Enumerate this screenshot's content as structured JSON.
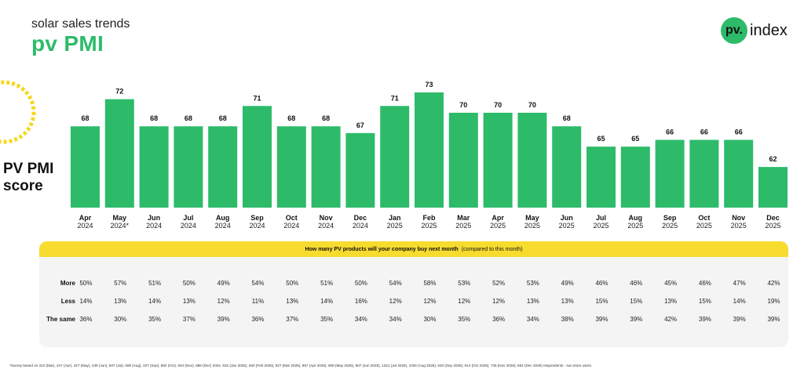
{
  "header": {
    "subtitle": "solar sales trends",
    "title": "pv PMI"
  },
  "logo": {
    "badge": "pv.",
    "text": "index"
  },
  "score_label": {
    "line1": "PV PMI",
    "line2": "score"
  },
  "colors": {
    "bar": "#2dbb6a",
    "accent_yellow": "#f7dc2f",
    "deco_yellow": "#f5d820"
  },
  "chart_data": {
    "type": "bar",
    "title": "pv PMI",
    "ylabel": "PV PMI score",
    "categories": [
      "Apr 2024",
      "May 2024*",
      "Jun 2024",
      "Jul 2024",
      "Aug 2024",
      "Sep 2024",
      "Oct 2024",
      "Nov 2024",
      "Dec 2024",
      "Jan 2025",
      "Feb 2025",
      "Mar 2025",
      "Apr 2025",
      "May 2025",
      "Jun 2025",
      "Jul 2025",
      "Aug 2025",
      "Sep 2025",
      "Oct 2025",
      "Nov 2025",
      "Dec 2025"
    ],
    "months": [
      "Apr",
      "May",
      "Jun",
      "Jul",
      "Aug",
      "Sep",
      "Oct",
      "Nov",
      "Dec",
      "Jan",
      "Feb",
      "Mar",
      "Apr",
      "May",
      "Jun",
      "Jul",
      "Aug",
      "Sep",
      "Oct",
      "Nov",
      "Dec"
    ],
    "years": [
      "2024",
      "2024*",
      "2024",
      "2024",
      "2024",
      "2024",
      "2024",
      "2024",
      "2024",
      "2025",
      "2025",
      "2025",
      "2025",
      "2025",
      "2025",
      "2025",
      "2025",
      "2025",
      "2025",
      "2025",
      "2025"
    ],
    "values": [
      68,
      72,
      68,
      68,
      68,
      71,
      68,
      68,
      67,
      71,
      73,
      70,
      70,
      70,
      68,
      65,
      65,
      66,
      66,
      66,
      62
    ],
    "ylim": [
      56,
      73
    ]
  },
  "survey_table": {
    "question": "How many PV products will your company buy next month",
    "note": "(compared to this month)",
    "rows": [
      {
        "label": "More",
        "values": [
          "50%",
          "57%",
          "51%",
          "50%",
          "49%",
          "54%",
          "50%",
          "51%",
          "50%",
          "54%",
          "58%",
          "53%",
          "52%",
          "53%",
          "49%",
          "46%",
          "46%",
          "45%",
          "46%",
          "47%",
          "42%"
        ]
      },
      {
        "label": "Less",
        "values": [
          "14%",
          "13%",
          "14%",
          "13%",
          "12%",
          "11%",
          "13%",
          "14%",
          "16%",
          "12%",
          "12%",
          "12%",
          "12%",
          "13%",
          "13%",
          "15%",
          "15%",
          "13%",
          "15%",
          "14%",
          "19%"
        ]
      },
      {
        "label": "The same",
        "values": [
          "36%",
          "30%",
          "35%",
          "37%",
          "39%",
          "36%",
          "37%",
          "35%",
          "34%",
          "34%",
          "30%",
          "35%",
          "36%",
          "34%",
          "38%",
          "39%",
          "39%",
          "42%",
          "39%",
          "39%",
          "39%"
        ]
      }
    ]
  },
  "footnote": "*Survey based on 312 (Mar), 447 (Apr), 427 (May), 449 (Jun), 507 (Jul), 508 (Aug), 327 (Sep), 882 (Oct), 834 (Nov), 588 (Dec) 2024, 932 (Jan 2025), 630 (Feb 2025), 827 (Mar 2025), 957 (Apr 2025), 908 (May 2025), 907 (Jun 2025), 1321 (Jul 2025), 1026 (Aug 2025), 933 (Sep 2025), 914 (Oct 2025), 735 (Nov 2025), 554 (Dec 2025) respondents - sun.store users."
}
